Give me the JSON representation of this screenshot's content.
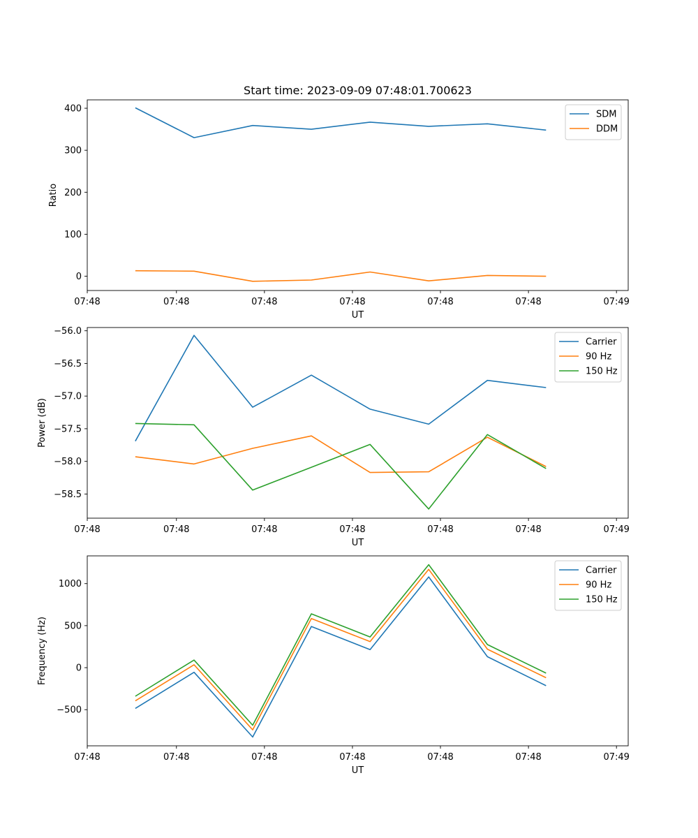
{
  "figure": {
    "title": "Start time: 2023-09-09 07:48:01.700623"
  },
  "chart_data": [
    {
      "type": "line",
      "title": "Start time: 2023-09-09 07:48:01.700623",
      "xlabel": "UT",
      "ylabel": "Ratio",
      "x": [
        1,
        2,
        3,
        4,
        5,
        6,
        7,
        8
      ],
      "xlim": [
        0.18,
        9.4
      ],
      "x_ticks": [
        0.18,
        1.7,
        3.2,
        4.7,
        6.2,
        7.7,
        9.2
      ],
      "x_tick_labels": [
        "07:48",
        "07:48",
        "07:48",
        "07:48",
        "07:48",
        "07:48",
        "07:49"
      ],
      "ylim": [
        -34,
        420
      ],
      "y_ticks": [
        0,
        100,
        200,
        300,
        400
      ],
      "y_tick_labels": [
        "0",
        "100",
        "200",
        "300",
        "400"
      ],
      "legend_position": "top-right",
      "series": [
        {
          "name": "SDM",
          "color": "#1f77b4",
          "values": [
            401,
            330,
            359,
            350,
            367,
            357,
            363,
            348
          ]
        },
        {
          "name": "DDM",
          "color": "#ff7f0e",
          "values": [
            13,
            12,
            -12,
            -9,
            10,
            -11,
            2,
            0
          ]
        }
      ]
    },
    {
      "type": "line",
      "title": "",
      "xlabel": "UT",
      "ylabel": "Power (dB)",
      "x": [
        1,
        2,
        3,
        4,
        5,
        6,
        7,
        8
      ],
      "xlim": [
        0.18,
        9.4
      ],
      "x_ticks": [
        0.18,
        1.7,
        3.2,
        4.7,
        6.2,
        7.7,
        9.2
      ],
      "x_tick_labels": [
        "07:48",
        "07:48",
        "07:48",
        "07:48",
        "07:48",
        "07:48",
        "07:49"
      ],
      "ylim": [
        -58.87,
        -55.95
      ],
      "y_ticks": [
        -56.0,
        -56.5,
        -57.0,
        -57.5,
        -58.0,
        -58.5
      ],
      "y_tick_labels": [
        "−56.0",
        "−56.5",
        "−57.0",
        "−57.5",
        "−58.0",
        "−58.5"
      ],
      "legend_position": "top-right",
      "series": [
        {
          "name": "Carrier",
          "color": "#1f77b4",
          "values": [
            -57.69,
            -56.07,
            -57.17,
            -56.68,
            -57.2,
            -57.43,
            -56.76,
            -56.87
          ]
        },
        {
          "name": "90 Hz",
          "color": "#ff7f0e",
          "values": [
            -57.93,
            -58.04,
            -57.8,
            -57.61,
            -58.17,
            -58.16,
            -57.63,
            -58.08
          ]
        },
        {
          "name": "150 Hz",
          "color": "#2ca02c",
          "values": [
            -57.42,
            -57.44,
            -58.44,
            -58.09,
            -57.74,
            -58.73,
            -57.59,
            -58.11
          ]
        }
      ]
    },
    {
      "type": "line",
      "title": "",
      "xlabel": "UT",
      "ylabel": "Frequency (Hz)",
      "x": [
        1,
        2,
        3,
        4,
        5,
        6,
        7,
        8
      ],
      "xlim": [
        0.18,
        9.4
      ],
      "x_ticks": [
        0.18,
        1.7,
        3.2,
        4.7,
        6.2,
        7.7,
        9.2
      ],
      "x_tick_labels": [
        "07:48",
        "07:48",
        "07:48",
        "07:48",
        "07:48",
        "07:48",
        "07:49"
      ],
      "ylim": [
        -930,
        1330
      ],
      "y_ticks": [
        -500,
        0,
        500,
        1000
      ],
      "y_tick_labels": [
        "−500",
        "0",
        "500",
        "1000"
      ],
      "legend_position": "top-right",
      "series": [
        {
          "name": "Carrier",
          "color": "#1f77b4",
          "values": [
            -485,
            -55,
            -825,
            490,
            215,
            1080,
            130,
            -215
          ]
        },
        {
          "name": "90 Hz",
          "color": "#ff7f0e",
          "values": [
            -395,
            35,
            -740,
            585,
            310,
            1170,
            220,
            -120
          ]
        },
        {
          "name": "150 Hz",
          "color": "#2ca02c",
          "values": [
            -340,
            90,
            -685,
            640,
            365,
            1225,
            275,
            -65
          ]
        }
      ]
    }
  ]
}
